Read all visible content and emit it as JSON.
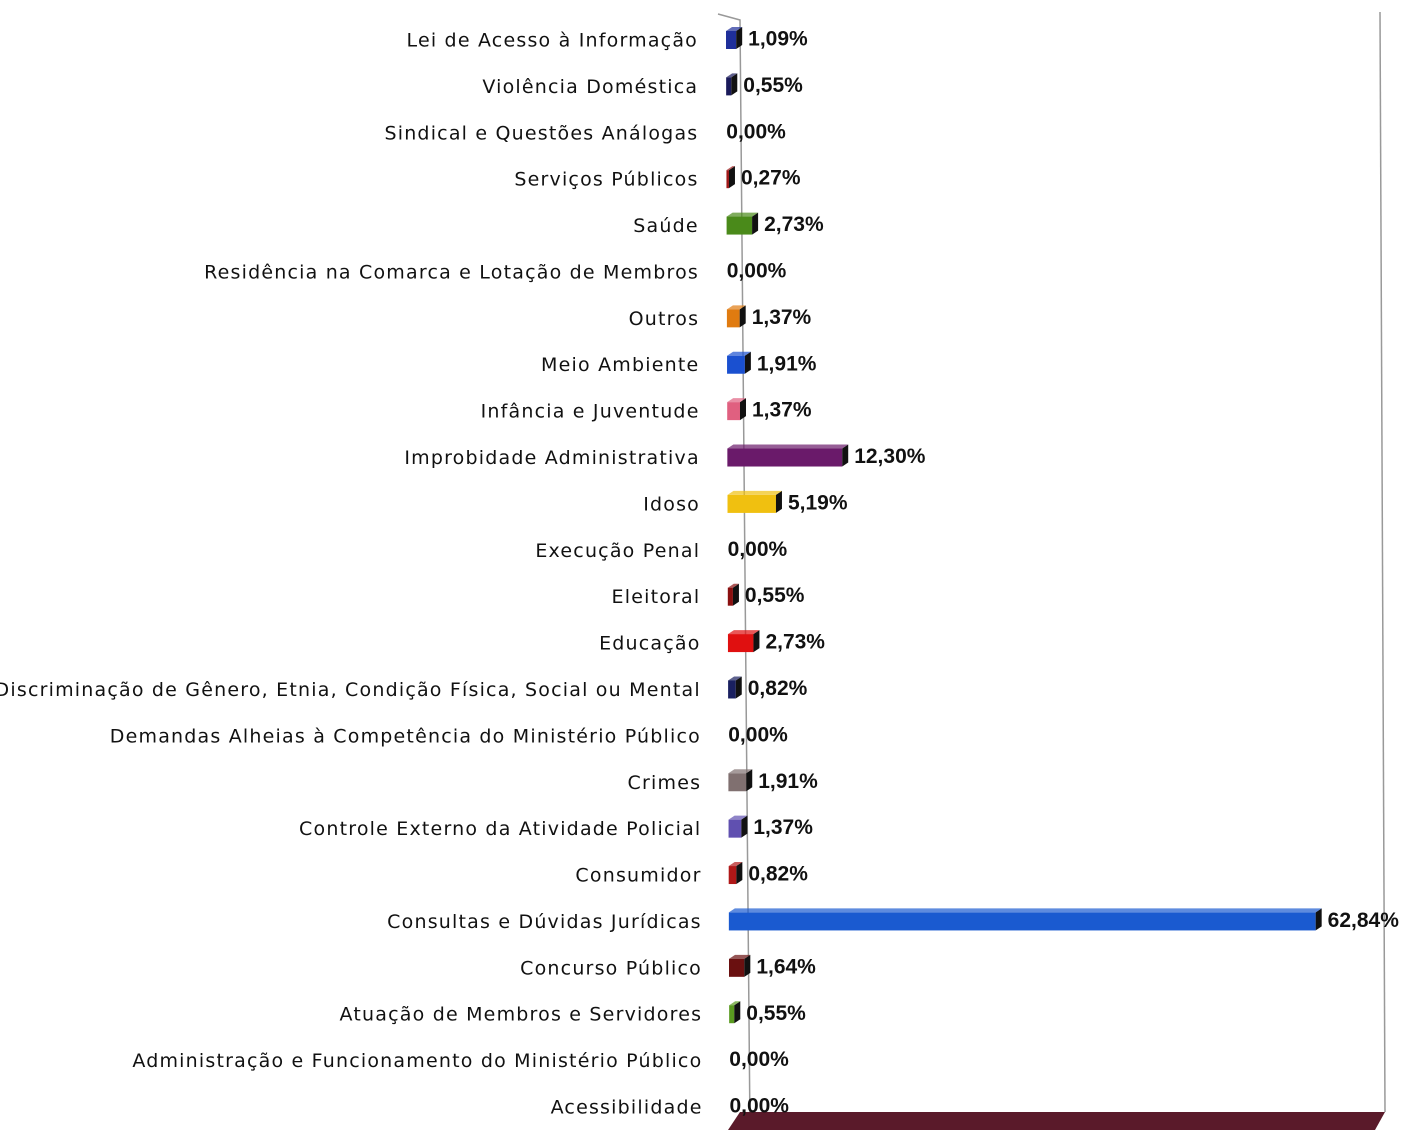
{
  "chart_data": {
    "type": "barh",
    "categories": [
      "Lei de Acesso à Informação",
      "Violência Doméstica",
      "Sindical e Questões Análogas",
      "Serviços Públicos",
      "Saúde",
      "Residência na Comarca e Lotação de Membros",
      "Outros",
      "Meio Ambiente",
      "Infância e Juventude",
      "Improbidade Administrativa",
      "Idoso",
      "Execução Penal",
      "Eleitoral",
      "Educação",
      "Discriminação de Gênero, Etnia, Condição Física, Social ou Mental",
      "Demandas Alheias à Competência do Ministério Público",
      "Crimes",
      "Controle Externo da Atividade Policial",
      "Consumidor",
      "Consultas e Dúvidas Jurídicas",
      "Concurso Público",
      "Atuação de Membros e Servidores",
      "Administração e Funcionamento do Ministério Público",
      "Acessibilidade"
    ],
    "values": [
      1.09,
      0.55,
      0,
      0.27,
      2.73,
      0,
      1.37,
      1.91,
      1.37,
      12.3,
      5.19,
      0,
      0.55,
      2.73,
      0.82,
      0,
      1.91,
      1.37,
      0.82,
      62.84,
      1.64,
      0.55,
      0,
      0
    ],
    "value_labels": [
      "1,09%",
      "0,55%",
      "0,00%",
      "0,27%",
      "2,73%",
      "0,00%",
      "1,37%",
      "1,91%",
      "1,37%",
      "12,30%",
      "5,19%",
      "0,00%",
      "0,55%",
      "2,73%",
      "0,82%",
      "0,00%",
      "1,91%",
      "1,37%",
      "0,82%",
      "62,84%",
      "1,64%",
      "0,55%",
      "0,00%",
      "0,00%"
    ],
    "colors": [
      "#1f2f9a",
      "#1a1a5a",
      "#333333",
      "#a01818",
      "#4a8a1a",
      "#333333",
      "#e07b10",
      "#1a50d0",
      "#e06080",
      "#6a1a6a",
      "#f0c010",
      "#333333",
      "#8a1010",
      "#e01010",
      "#1a2060",
      "#333333",
      "#807070",
      "#6050b0",
      "#b01818",
      "#1a5ad0",
      "#6a1010",
      "#5a9a20",
      "#333333",
      "#333333"
    ],
    "xlim": [
      0,
      65
    ]
  }
}
